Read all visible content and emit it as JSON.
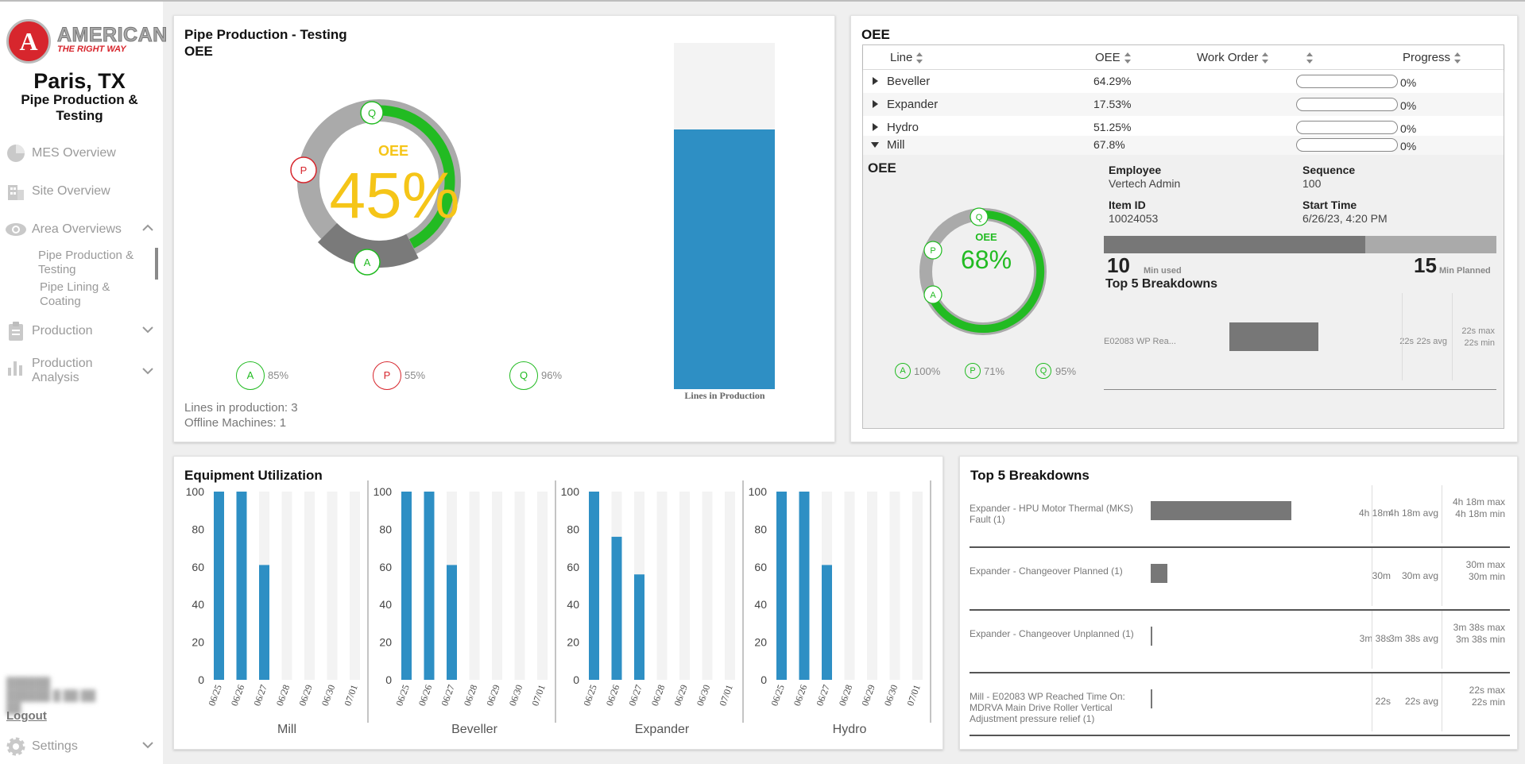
{
  "brand": {
    "logo_letter": "A",
    "logo_word": "AMERICAN",
    "tagline": "THE RIGHT WAY"
  },
  "site": {
    "title": "Paris, TX",
    "subtitle": "Pipe Production & Testing"
  },
  "nav": {
    "mes_overview": "MES Overview",
    "site_overview": "Site Overview",
    "area_overviews": "Area Overviews",
    "sub_pipe_production": "Pipe Production & Testing",
    "sub_pipe_lining": "Pipe Lining & Coating",
    "production": "Production",
    "production_analysis": "Production Analysis",
    "logout": "Logout",
    "settings": "Settings"
  },
  "main_panel": {
    "title": "Pipe Production - Testing",
    "subtitle": "OEE",
    "gauge_label": "OEE",
    "gauge_value": "45%",
    "a_letter": "A",
    "p_letter": "P",
    "q_letter": "Q",
    "a_value": "85%",
    "p_value": "55%",
    "q_value": "96%",
    "lines_in_production": "Lines in production: 3",
    "offline_machines": "Offline Machines: 1",
    "bar_label": "Lines in Production",
    "bar_fill_fraction": 0.75,
    "colors": {
      "quality": "#22bb22",
      "availability": "#7a7a7a",
      "performance": "#aaaaaa",
      "value": "#f5c518",
      "bar": "#2e8fc4"
    }
  },
  "oee_panel": {
    "title": "OEE",
    "columns": {
      "line": "Line",
      "oee": "OEE",
      "work_order": "Work Order",
      "progress": "Progress"
    },
    "rows": [
      {
        "line": "Beveller",
        "oee": "64.29%",
        "progress": "0%"
      },
      {
        "line": "Expander",
        "oee": "17.53%",
        "progress": "0%"
      },
      {
        "line": "Hydro",
        "oee": "51.25%",
        "progress": "0%"
      },
      {
        "line": "Mill",
        "oee": "67.8%",
        "progress": "0%"
      }
    ],
    "detail": {
      "oee_label": "OEE",
      "gauge_label": "OEE",
      "gauge_value": "68%",
      "a_value": "100%",
      "p_value": "71%",
      "q_value": "95%",
      "employee_label": "Employee",
      "employee_value": "Vertech Admin",
      "sequence_label": "Sequence",
      "sequence_value": "100",
      "item_id_label": "Item ID",
      "item_id_value": "10024053",
      "start_time_label": "Start Time",
      "start_time_value": "6/26/23, 4:20 PM",
      "min_used": "10",
      "min_used_label": "Min used",
      "min_planned": "15",
      "min_planned_label": "Min Planned",
      "time_fill_fraction": 0.667,
      "breakdowns_title": "Top 5 Breakdowns",
      "breakdown": {
        "label": "E02083 WP Rea...",
        "total": "22s",
        "avg": "22s avg",
        "max": "22s max",
        "min": "22s min"
      }
    }
  },
  "utilization": {
    "title": "Equipment Utilization",
    "yticks": [
      "100",
      "80",
      "60",
      "40",
      "20",
      "0"
    ],
    "dates": [
      "06/25",
      "06/26",
      "06/27",
      "06/28",
      "06/29",
      "06/30",
      "07/01"
    ],
    "charts": [
      {
        "name": "Mill",
        "values": [
          100,
          100,
          61,
          0,
          0,
          0,
          0
        ]
      },
      {
        "name": "Beveller",
        "values": [
          100,
          100,
          61,
          0,
          0,
          0,
          0
        ]
      },
      {
        "name": "Expander",
        "values": [
          100,
          76,
          56,
          0,
          0,
          0,
          0
        ]
      },
      {
        "name": "Hydro",
        "values": [
          100,
          100,
          61,
          0,
          0,
          0,
          0
        ]
      }
    ]
  },
  "breakdowns": {
    "title": "Top 5 Breakdowns",
    "items": [
      {
        "label": "Expander - HPU Motor Thermal (MKS) Fault (1)",
        "total": "4h 18m",
        "avg": "4h 18m avg",
        "max": "4h 18m max",
        "min": "4h 18m min",
        "fraction": 1.0
      },
      {
        "label": "Expander - Changeover Planned (1)",
        "total": "30m",
        "avg": "30m avg",
        "max": "30m max",
        "min": "30m min",
        "fraction": 0.116
      },
      {
        "label": "Expander - Changeover Unplanned (1)",
        "total": "3m 38s",
        "avg": "3m 38s avg",
        "max": "3m 38s max",
        "min": "3m 38s min",
        "fraction": 0.014
      },
      {
        "label": "Mill - E02083 WP Reached Time On: MDRVA Main Drive Roller Vertical Adjustment pressure relief (1)",
        "total": "22s",
        "avg": "22s avg",
        "max": "22s max",
        "min": "22s min",
        "fraction": 0.001
      }
    ]
  }
}
